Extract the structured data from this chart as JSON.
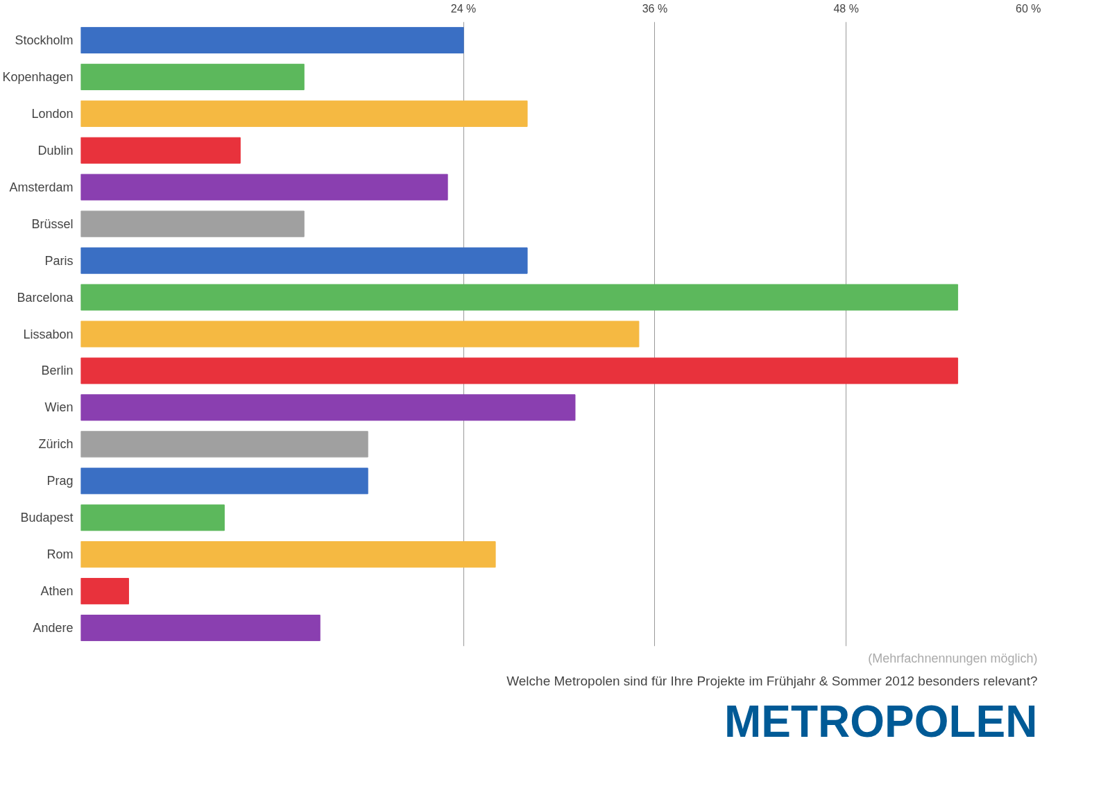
{
  "chart_data": {
    "type": "bar",
    "orientation": "horizontal",
    "title": "METROPOLEN",
    "subtitle": "Welche Metropolen sind für Ihre Projekte im Frühjahr & Sommer 2012 besonders relevant?",
    "annotations": [
      "(Mehrfachnennungen möglich)"
    ],
    "categories": [
      "Stockholm",
      "Kopenhagen",
      "London",
      "Dublin",
      "Amsterdam",
      "Brüssel",
      "Paris",
      "Barcelona",
      "Lissabon",
      "Berlin",
      "Wien",
      "Zürich",
      "Prag",
      "Budapest",
      "Rom",
      "Athen",
      "Andere"
    ],
    "values": [
      24,
      14,
      28,
      10,
      23,
      14,
      28,
      55,
      35,
      55,
      31,
      18,
      18,
      9,
      26,
      3,
      15
    ],
    "colors": [
      "#3a6fc4",
      "#5cb85c",
      "#f5b942",
      "#e8323c",
      "#8a3fb0",
      "#a0a0a0",
      "#3a6fc4",
      "#5cb85c",
      "#f5b942",
      "#e8323c",
      "#8a3fb0",
      "#a0a0a0",
      "#3a6fc4",
      "#5cb85c",
      "#f5b942",
      "#e8323c",
      "#8a3fb0"
    ],
    "xlim": [
      0,
      60
    ],
    "xticks": [
      {
        "value": 24,
        "label": "24 %"
      },
      {
        "value": 36,
        "label": "36 %"
      },
      {
        "value": 48,
        "label": "48 %"
      },
      {
        "value": 60,
        "label": "60 %"
      }
    ],
    "grid": "x"
  }
}
